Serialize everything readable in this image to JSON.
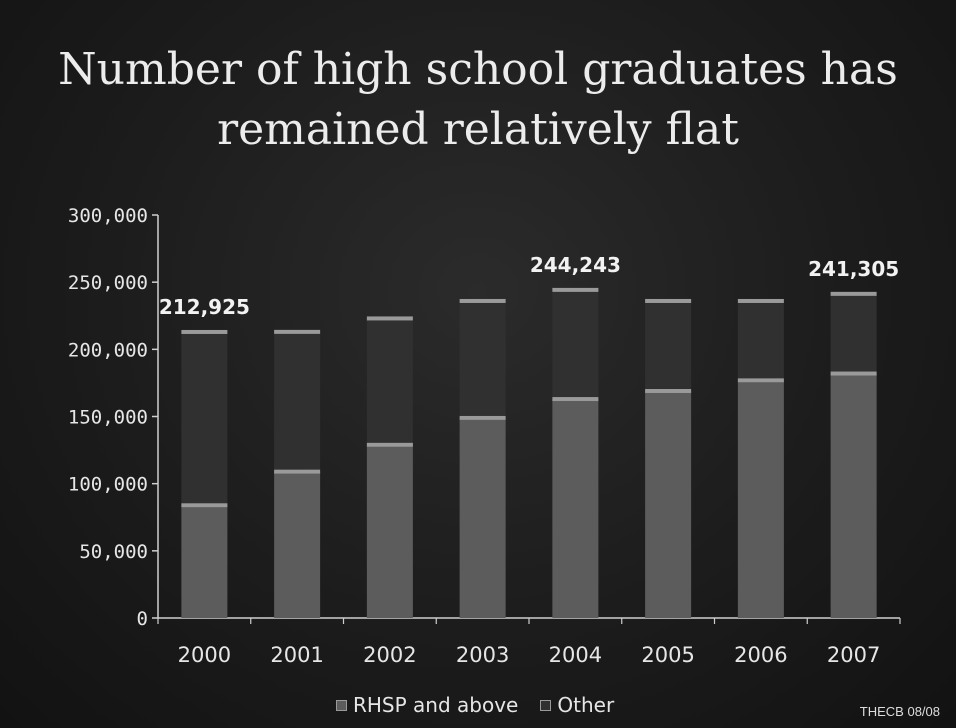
{
  "title_line1": "Number of high school graduates has",
  "title_line2": "remained relatively flat",
  "footer": "THECB 08/08",
  "colors": {
    "rhsp": "#5c5c5c",
    "other": "#303030",
    "band": "#9a9a9a",
    "axis": "#cfcfcf",
    "text": "#e6e6e6"
  },
  "chart_data": {
    "type": "bar",
    "stacked": true,
    "categories": [
      "2000",
      "2001",
      "2002",
      "2003",
      "2004",
      "2005",
      "2006",
      "2007"
    ],
    "series": [
      {
        "name": "RHSP and above",
        "values": [
          84000,
          109000,
          129000,
          149000,
          163000,
          169000,
          177000,
          182000
        ]
      },
      {
        "name": "Other",
        "values": [
          128925,
          104000,
          94000,
          87000,
          81243,
          67000,
          59000,
          59305
        ]
      }
    ],
    "totals": [
      212925,
      213000,
      223000,
      236000,
      244243,
      236000,
      236000,
      241305
    ],
    "data_labels": [
      {
        "category": "2000",
        "text": "212,925"
      },
      {
        "category": "2004",
        "text": "244,243"
      },
      {
        "category": "2007",
        "text": "241,305"
      }
    ],
    "ylim": [
      0,
      300000
    ],
    "yticks": [
      0,
      50000,
      100000,
      150000,
      200000,
      250000,
      300000
    ],
    "ytick_labels": [
      "0",
      "50,000",
      "100,000",
      "150,000",
      "200,000",
      "250,000",
      "300,000"
    ],
    "legend_position": "bottom",
    "grid": false
  }
}
